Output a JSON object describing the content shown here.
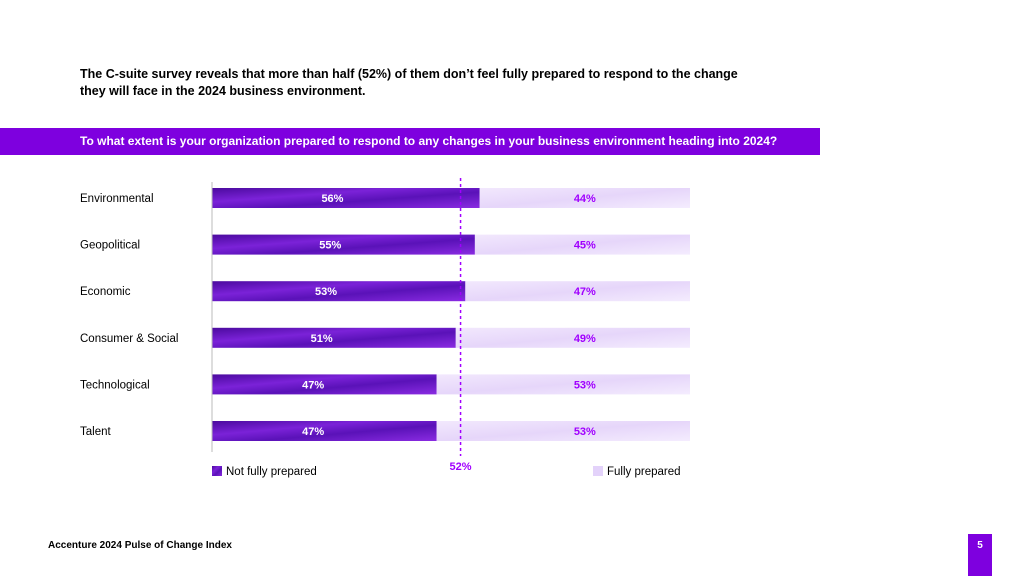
{
  "headline": "The C-suite survey reveals that more than half (52%) of them don’t feel fully prepared to respond to the change they will face in the 2024 business environment.",
  "question": "To what extent is your  organization prepared to respond to  any changes in your business environment heading into 2024?",
  "footer": {
    "source": "Accenture 2024 Pulse of Change Index",
    "page_number": "5"
  },
  "colors": {
    "accent": "#7e00df",
    "not_prepared": "#6a1fc9",
    "fully_prepared": "#ece0fb",
    "label": "#ffffff",
    "label_light": "#a100ff"
  },
  "chart_data": {
    "type": "bar",
    "orientation": "horizontal",
    "stacked": true,
    "categories": [
      "Environmental",
      "Geopolitical",
      "Economic",
      "Consumer & Social",
      "Technological",
      "Talent"
    ],
    "series": [
      {
        "name": "Not fully prepared",
        "values": [
          56,
          55,
          53,
          51,
          47,
          47
        ],
        "labels": [
          "56%",
          "55%",
          "53%",
          "51%",
          "47%",
          "47%"
        ]
      },
      {
        "name": "Fully prepared",
        "values": [
          44,
          45,
          47,
          49,
          53,
          53
        ],
        "labels": [
          "44%",
          "45%",
          "47%",
          "49%",
          "53%",
          "53%"
        ]
      }
    ],
    "reference_line": {
      "value": 52,
      "label": "52%"
    },
    "xlim": [
      0,
      100
    ],
    "legend_position": "bottom"
  }
}
